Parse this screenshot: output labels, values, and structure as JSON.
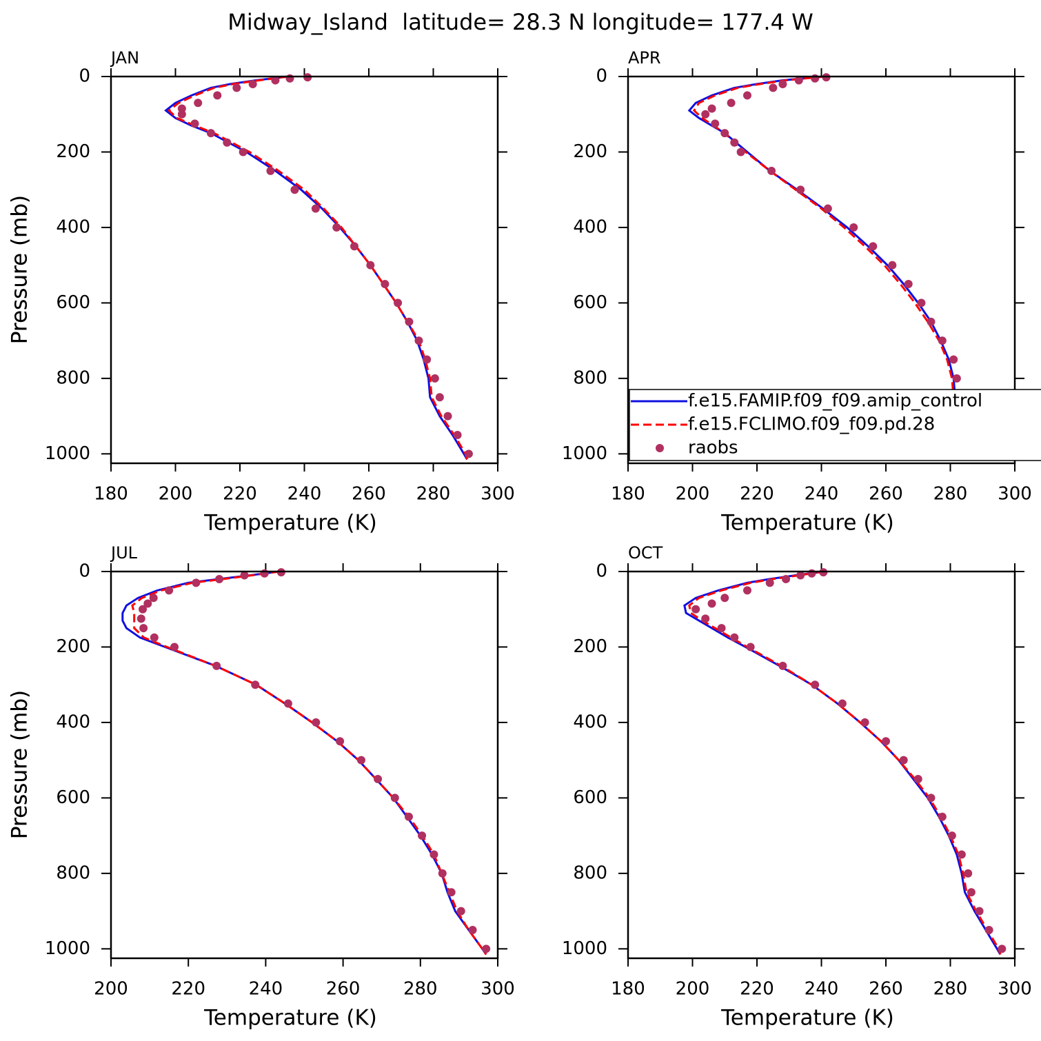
{
  "title": "Midway_Island  latitude= 28.3 N longitude= 177.4 W",
  "chart_data": [
    {
      "type": "line",
      "title": "JAN",
      "xlabel": "Temperature (K)",
      "ylabel": "Pressure (mb)",
      "xlim": [
        180,
        300
      ],
      "xticks": [
        180,
        200,
        220,
        240,
        260,
        280,
        300
      ],
      "ylim": [
        0,
        1025
      ],
      "yticks": [
        0,
        200,
        400,
        600,
        800,
        1000
      ],
      "y_inverted": true,
      "legend": false,
      "series": [
        {
          "color": "#1010e0",
          "style": "solid",
          "y": [
            0,
            10,
            20,
            30,
            50,
            70,
            90,
            110,
            130,
            150,
            175,
            200,
            250,
            300,
            350,
            400,
            450,
            500,
            550,
            600,
            650,
            700,
            750,
            800,
            850,
            900,
            950,
            1000,
            1015
          ],
          "x": [
            235,
            225,
            217,
            211,
            205,
            200,
            197,
            200,
            205,
            211,
            216.5,
            222,
            231,
            239,
            245.5,
            251,
            256,
            260.5,
            264.5,
            268.5,
            272,
            275,
            277,
            278.5,
            279,
            282,
            286,
            289.5,
            290.5
          ]
        },
        {
          "color": "#ff0000",
          "style": "dashed",
          "y": [
            0,
            10,
            20,
            30,
            50,
            70,
            90,
            110,
            130,
            150,
            175,
            200,
            250,
            300,
            350,
            400,
            450,
            500,
            550,
            600,
            650,
            700,
            750,
            800,
            850,
            900,
            950,
            1000,
            1015
          ],
          "x": [
            235,
            226,
            218,
            212,
            206,
            201,
            198,
            200.5,
            206,
            212,
            217.5,
            223,
            232,
            240,
            246,
            251.5,
            256,
            260.5,
            264.5,
            268.5,
            272,
            275.5,
            277.5,
            279,
            279.5,
            282.5,
            286.5,
            290,
            290.5
          ]
        },
        {
          "color": "#b03060",
          "style": "dots",
          "y": [
            2,
            5,
            10,
            20,
            30,
            50,
            70,
            85,
            100,
            125,
            150,
            175,
            200,
            250,
            300,
            350,
            400,
            450,
            500,
            550,
            600,
            650,
            700,
            750,
            800,
            850,
            900,
            950,
            1000
          ],
          "x": [
            241,
            235.5,
            231,
            224,
            219,
            213,
            207,
            202,
            202,
            206,
            211,
            216,
            221,
            229.5,
            237,
            243.5,
            250,
            255.5,
            260.5,
            265,
            269,
            272.5,
            275.5,
            278,
            280.5,
            282,
            284.5,
            287.5,
            291
          ]
        }
      ]
    },
    {
      "type": "line",
      "title": "APR",
      "xlabel": "Temperature (K)",
      "ylabel": "Pressure (mb)",
      "xlim": [
        180,
        300
      ],
      "xticks": [
        180,
        200,
        220,
        240,
        260,
        280,
        300
      ],
      "ylim": [
        0,
        1025
      ],
      "yticks": [
        0,
        200,
        400,
        600,
        800,
        1000
      ],
      "y_inverted": true,
      "legend": true,
      "series": [
        {
          "name": "f.e15.FAMIP.f09_f09.amip_control",
          "color": "#1010e0",
          "style": "solid",
          "y": [
            0,
            10,
            20,
            30,
            50,
            70,
            90,
            110,
            130,
            150,
            175,
            200,
            250,
            300,
            350,
            400,
            450,
            500,
            550,
            600,
            650,
            700,
            750,
            800,
            850,
            900,
            950,
            1000,
            1015
          ],
          "x": [
            241,
            228,
            220,
            213,
            206,
            201,
            199,
            202,
            206,
            210,
            213.5,
            217,
            224,
            232.5,
            240.5,
            248,
            254.5,
            260.5,
            265.5,
            270,
            274,
            277,
            279.5,
            281,
            281.5,
            284,
            286.5,
            289.5,
            290.5
          ]
        },
        {
          "name": "f.e15.FCLIMO.f09_f09.pd.28",
          "color": "#ff0000",
          "style": "dashed",
          "y": [
            0,
            10,
            20,
            30,
            50,
            70,
            90,
            110,
            130,
            150,
            175,
            200,
            250,
            300,
            350,
            400,
            450,
            500,
            550,
            600,
            650,
            700,
            750,
            800,
            850,
            900,
            950,
            1000,
            1015
          ],
          "x": [
            241,
            229,
            221,
            214,
            207,
            202,
            200.5,
            203,
            206.5,
            210,
            213,
            216.5,
            224,
            232,
            240,
            247,
            253.5,
            259.5,
            264.5,
            269,
            273,
            276.5,
            279,
            280.5,
            281,
            284,
            287,
            290,
            291
          ]
        },
        {
          "name": "raobs",
          "color": "#b03060",
          "style": "dots",
          "y": [
            2,
            5,
            10,
            20,
            30,
            50,
            70,
            85,
            100,
            125,
            150,
            175,
            200,
            250,
            300,
            350,
            400,
            450,
            500,
            550,
            600,
            650,
            700,
            750,
            800,
            850,
            900,
            950,
            1000
          ],
          "x": [
            241.5,
            238,
            233,
            228,
            225,
            217,
            212,
            206,
            204,
            207,
            210,
            213,
            215,
            224.5,
            233.5,
            242,
            250,
            256,
            262,
            267,
            271,
            274,
            277.5,
            281,
            282,
            282.5,
            284.5,
            286.5,
            291
          ]
        }
      ]
    },
    {
      "type": "line",
      "title": "JUL",
      "xlabel": "Temperature (K)",
      "ylabel": "Pressure (mb)",
      "xlim": [
        200,
        300
      ],
      "xticks": [
        200,
        220,
        240,
        260,
        280,
        300
      ],
      "ylim": [
        0,
        1025
      ],
      "yticks": [
        0,
        200,
        400,
        600,
        800,
        1000
      ],
      "y_inverted": true,
      "legend": false,
      "series": [
        {
          "color": "#1010e0",
          "style": "solid",
          "y": [
            0,
            10,
            20,
            30,
            50,
            70,
            90,
            110,
            130,
            150,
            175,
            200,
            250,
            300,
            350,
            400,
            450,
            500,
            550,
            600,
            650,
            700,
            750,
            800,
            850,
            900,
            950,
            1000,
            1015
          ],
          "x": [
            243.5,
            236,
            228,
            220,
            212,
            207,
            204,
            203,
            203,
            204,
            207.5,
            214,
            227,
            237.5,
            245,
            252,
            258.5,
            264,
            268.5,
            273,
            276.5,
            280,
            283,
            285.5,
            287,
            289,
            292.5,
            296,
            297
          ]
        },
        {
          "color": "#ff0000",
          "style": "dashed",
          "y": [
            0,
            10,
            20,
            30,
            50,
            70,
            90,
            110,
            130,
            150,
            175,
            200,
            250,
            300,
            350,
            400,
            450,
            500,
            550,
            600,
            650,
            700,
            750,
            800,
            850,
            900,
            950,
            1000,
            1015
          ],
          "x": [
            243.5,
            236.5,
            229,
            221,
            213,
            208,
            205.5,
            206,
            206,
            206,
            208.5,
            214.5,
            227,
            237.5,
            245,
            252,
            258.5,
            264,
            268.5,
            273,
            277,
            280.5,
            283.5,
            285.5,
            287.5,
            289.5,
            292.5,
            296,
            297
          ]
        },
        {
          "color": "#b03060",
          "style": "dots",
          "y": [
            2,
            5,
            10,
            20,
            30,
            50,
            70,
            85,
            100,
            125,
            150,
            175,
            200,
            250,
            300,
            350,
            400,
            450,
            500,
            550,
            600,
            650,
            700,
            750,
            800,
            850,
            900,
            950,
            1000
          ],
          "x": [
            244,
            239.7,
            234.5,
            228,
            222,
            215,
            211,
            209.5,
            208.2,
            207.8,
            208.4,
            211.2,
            216.4,
            227.3,
            237.3,
            245.8,
            253,
            259.2,
            264.7,
            269,
            273.4,
            277,
            280.4,
            283.5,
            285.7,
            288,
            290.5,
            293.5,
            297
          ]
        }
      ]
    },
    {
      "type": "line",
      "title": "OCT",
      "xlabel": "Temperature (K)",
      "ylabel": "Pressure (mb)",
      "xlim": [
        180,
        300
      ],
      "xticks": [
        180,
        200,
        220,
        240,
        260,
        280,
        300
      ],
      "ylim": [
        0,
        1025
      ],
      "yticks": [
        0,
        200,
        400,
        600,
        800,
        1000
      ],
      "y_inverted": true,
      "legend": false,
      "series": [
        {
          "color": "#1010e0",
          "style": "solid",
          "y": [
            0,
            10,
            20,
            30,
            50,
            70,
            90,
            110,
            130,
            150,
            175,
            200,
            250,
            300,
            350,
            400,
            450,
            500,
            550,
            600,
            650,
            700,
            750,
            800,
            850,
            900,
            950,
            1000,
            1015
          ],
          "x": [
            241,
            232,
            224,
            217,
            208,
            201,
            197.5,
            198,
            202,
            206,
            211,
            216.5,
            227,
            237,
            245,
            252,
            258.5,
            264,
            268.5,
            273,
            276.5,
            279.5,
            282,
            283.5,
            284.5,
            287.5,
            291,
            294.5,
            295.5
          ]
        },
        {
          "color": "#ff0000",
          "style": "dashed",
          "y": [
            0,
            10,
            20,
            30,
            50,
            70,
            90,
            110,
            130,
            150,
            175,
            200,
            250,
            300,
            350,
            400,
            450,
            500,
            550,
            600,
            650,
            700,
            750,
            800,
            850,
            900,
            950,
            1000,
            1015
          ],
          "x": [
            241,
            233,
            225,
            218,
            209,
            202,
            199,
            199.5,
            203,
            207,
            212,
            217,
            227.5,
            237,
            245,
            252,
            258.5,
            264,
            269,
            273.5,
            277,
            280,
            282.5,
            284,
            285,
            288,
            291.5,
            295,
            295.5
          ]
        },
        {
          "color": "#b03060",
          "style": "dots",
          "y": [
            2,
            5,
            10,
            20,
            30,
            50,
            70,
            85,
            100,
            125,
            150,
            175,
            200,
            250,
            300,
            350,
            400,
            450,
            500,
            550,
            600,
            650,
            700,
            750,
            800,
            850,
            900,
            950,
            1000
          ],
          "x": [
            240.6,
            237,
            233.5,
            229,
            224,
            217,
            210,
            206,
            201,
            204,
            209,
            213,
            218,
            228,
            238,
            246.5,
            253.5,
            260,
            265.5,
            270,
            274,
            277.5,
            280.5,
            283.5,
            285.5,
            286.5,
            289,
            292,
            296
          ]
        }
      ]
    }
  ]
}
